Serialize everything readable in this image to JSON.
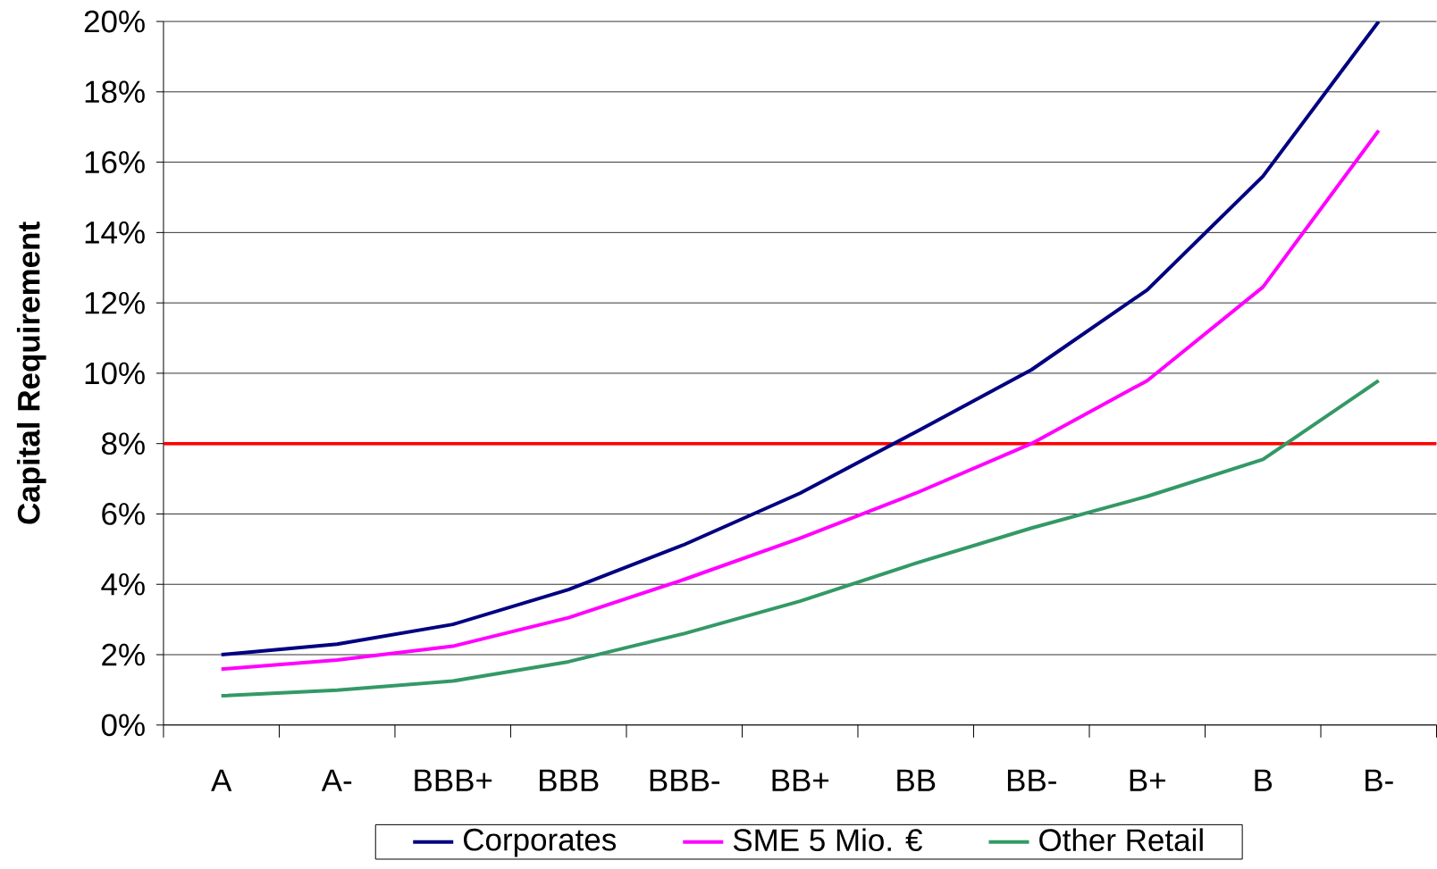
{
  "chart_data": {
    "type": "line",
    "ylabel": "Capital Requirement",
    "categories": [
      "A",
      "A-",
      "BBB+",
      "BBB",
      "BBB-",
      "BB+",
      "BB",
      "BB-",
      "B+",
      "B",
      "B-"
    ],
    "series": [
      {
        "name": "Corporates",
        "color": "#000080",
        "values": [
          2.0,
          2.3,
          2.86,
          3.85,
          5.13,
          6.59,
          8.33,
          10.1,
          12.37,
          15.6,
          20.0
        ]
      },
      {
        "name": "SME 5 Mio. €",
        "color": "#ff00ff",
        "values": [
          1.59,
          1.85,
          2.24,
          3.05,
          4.14,
          5.31,
          6.59,
          8.0,
          9.79,
          12.45,
          16.9
        ]
      },
      {
        "name": "Other Retail",
        "color": "#339966",
        "values": [
          0.83,
          0.99,
          1.25,
          1.8,
          2.6,
          3.52,
          4.6,
          5.6,
          6.5,
          7.55,
          9.79
        ]
      }
    ],
    "ylim": [
      0,
      20
    ],
    "yticks": [
      {
        "value": 0,
        "label": "0%"
      },
      {
        "value": 2,
        "label": "2%"
      },
      {
        "value": 4,
        "label": "4%"
      },
      {
        "value": 6,
        "label": "6%"
      },
      {
        "value": 8,
        "label": "8%"
      },
      {
        "value": 10,
        "label": "10%"
      },
      {
        "value": 12,
        "label": "12%"
      },
      {
        "value": 14,
        "label": "14%"
      },
      {
        "value": 16,
        "label": "16%"
      },
      {
        "value": 18,
        "label": "18%"
      },
      {
        "value": 20,
        "label": "20%"
      }
    ],
    "ref_lines": [
      {
        "axis": "y",
        "value": 8,
        "color": "#ff0000"
      }
    ],
    "grid": "y",
    "legend": "bottom",
    "marker": "none",
    "line_style": "solid"
  }
}
